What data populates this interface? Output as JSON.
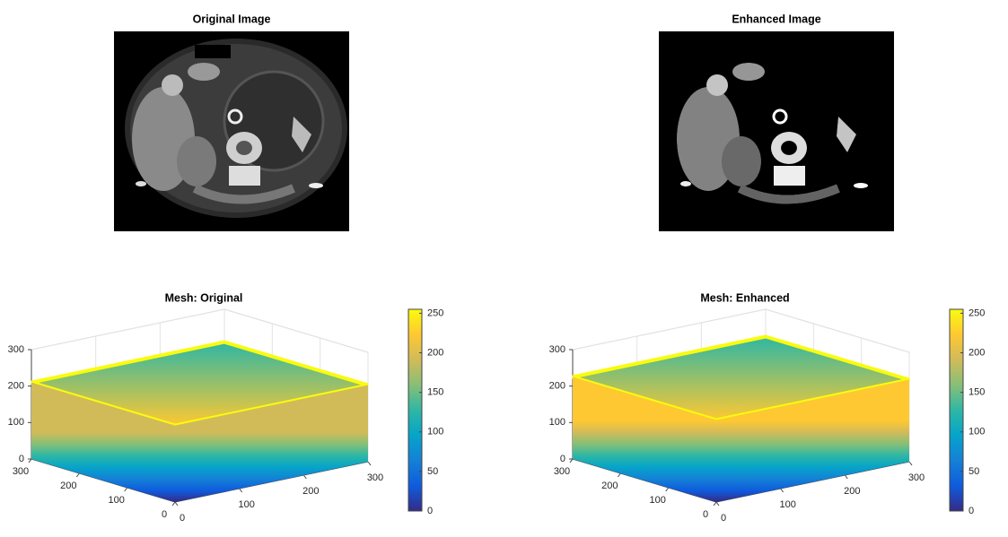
{
  "chart_data": [
    {
      "type": "image",
      "title": "Original Image",
      "enhanced": false
    },
    {
      "type": "image",
      "title": "Enhanced Image",
      "enhanced": true
    },
    {
      "type": "mesh",
      "title": "Mesh: Original",
      "xlim": [
        0,
        300
      ],
      "xticks": [
        0,
        100,
        200,
        300
      ],
      "ylim": [
        0,
        300
      ],
      "yticks": [
        0,
        100,
        200,
        300
      ],
      "zlim": [
        0,
        300
      ],
      "zticks": [
        0,
        100,
        200,
        300
      ],
      "border_value": 210,
      "clim": [
        0,
        255
      ],
      "cticks": [
        0,
        50,
        100,
        150,
        200,
        250
      ],
      "colormap": [
        "#352a87",
        "#0f5cdd",
        "#1481d6",
        "#06a4ca",
        "#2eb7a4",
        "#87bf77",
        "#d1bb59",
        "#fec832",
        "#f9fb0e"
      ],
      "grid": true
    },
    {
      "type": "mesh",
      "title": "Mesh: Enhanced",
      "xlim": [
        0,
        300
      ],
      "xticks": [
        0,
        100,
        200,
        300
      ],
      "ylim": [
        0,
        300
      ],
      "yticks": [
        0,
        100,
        200,
        300
      ],
      "zlim": [
        0,
        300
      ],
      "zticks": [
        0,
        100,
        200,
        300
      ],
      "border_value": 225,
      "clim": [
        0,
        255
      ],
      "cticks": [
        0,
        50,
        100,
        150,
        200,
        250
      ],
      "colormap": [
        "#352a87",
        "#0f5cdd",
        "#1481d6",
        "#06a4ca",
        "#2eb7a4",
        "#87bf77",
        "#d1bb59",
        "#fec832",
        "#f9fb0e"
      ],
      "grid": true
    }
  ]
}
